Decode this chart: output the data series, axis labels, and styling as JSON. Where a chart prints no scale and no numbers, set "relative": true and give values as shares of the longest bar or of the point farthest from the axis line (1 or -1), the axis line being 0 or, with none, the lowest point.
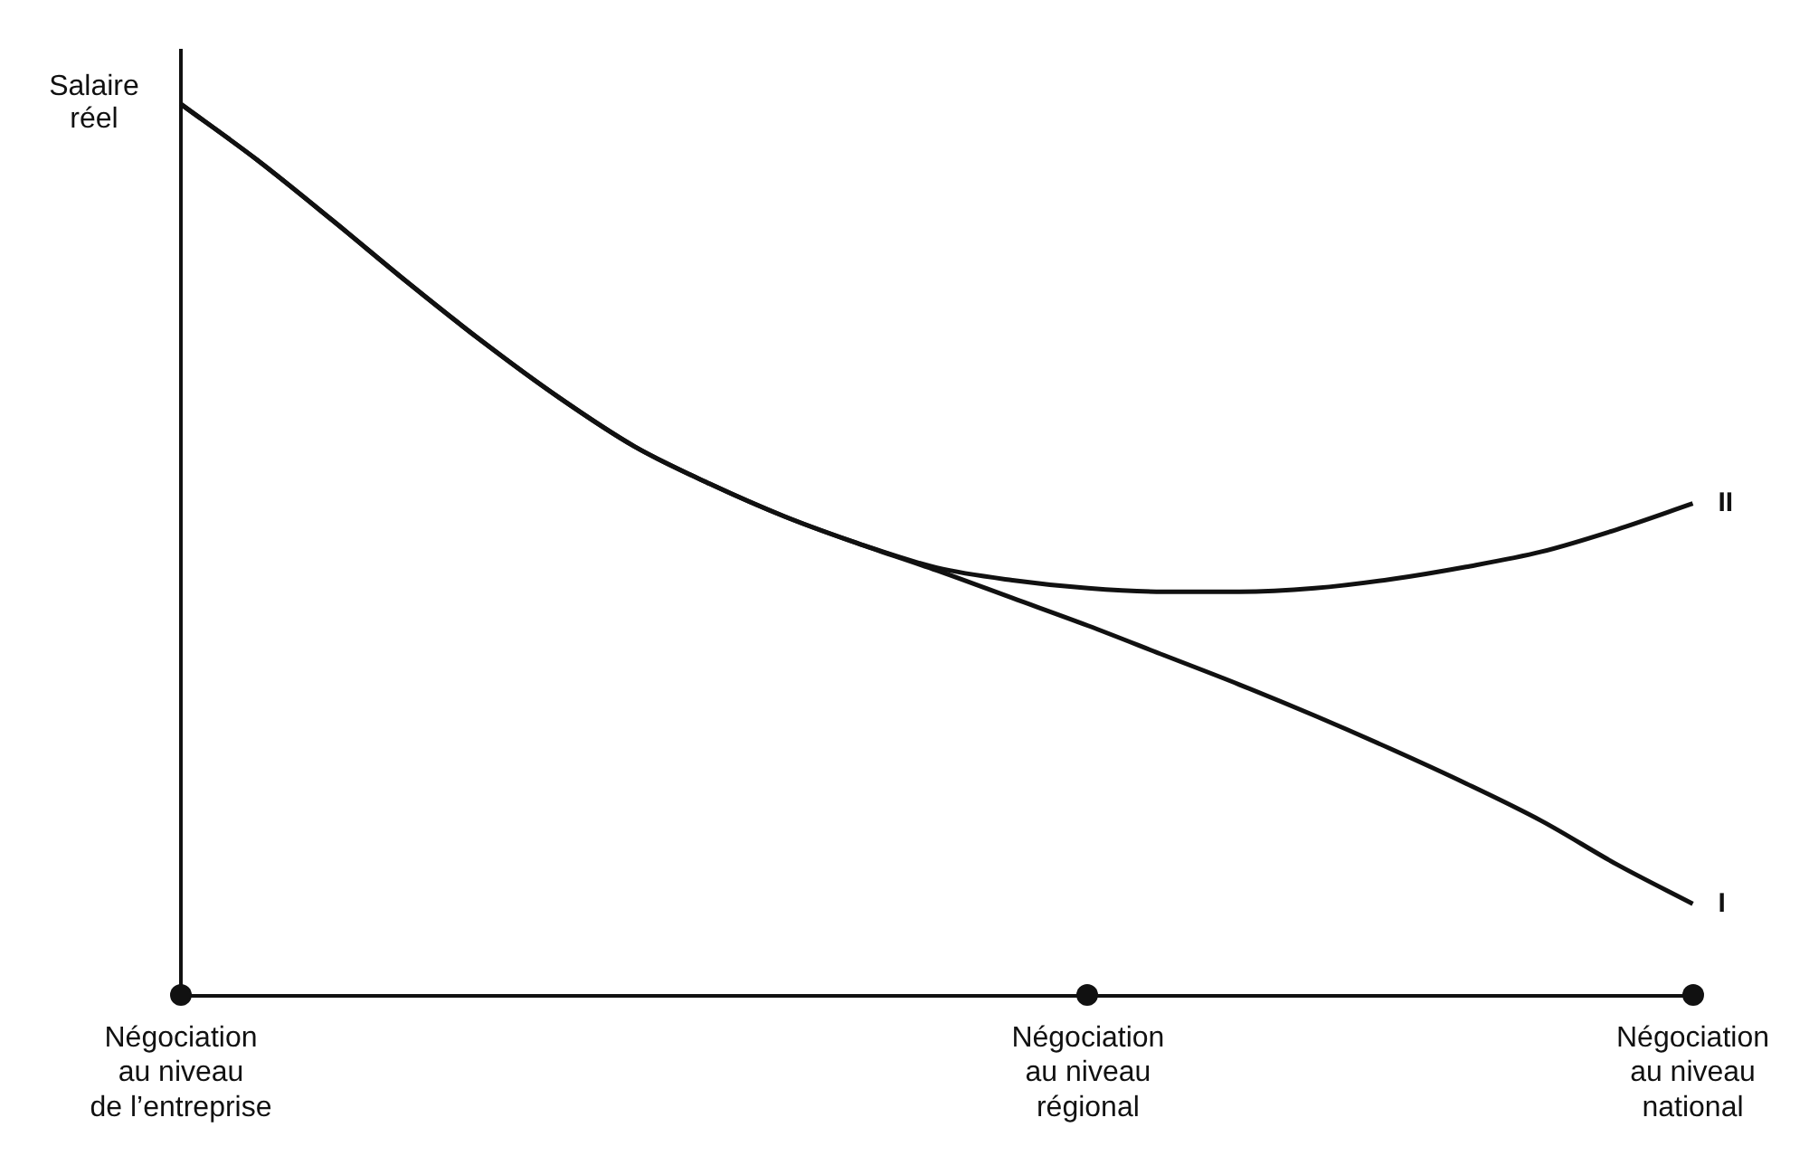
{
  "chart_data": {
    "type": "line",
    "relative": true,
    "ylabel": "Salaire réel",
    "legend": false,
    "grid": false,
    "marker": "none",
    "line_style": "solid",
    "categories": [
      "Négociation\nau niveau\nde l’entreprise",
      null,
      null,
      null,
      null,
      null,
      null,
      null,
      null,
      null,
      null,
      null,
      "Négociation\nau niveau\nrégional",
      null,
      null,
      null,
      null,
      null,
      null,
      null,
      "Négociation\nau niveau\nnational"
    ],
    "series": [
      {
        "name": "I",
        "color": "#111111",
        "values": [
          1.0,
          0.938,
          0.87,
          0.8,
          0.733,
          0.671,
          0.616,
          0.574,
          0.537,
          0.506,
          0.477,
          0.446,
          0.415,
          0.382,
          0.349,
          0.314,
          0.277,
          0.238,
          0.196,
          0.147,
          0.103
        ]
      },
      {
        "name": "II",
        "color": "#111111",
        "values": [
          1.0,
          0.938,
          0.87,
          0.8,
          0.733,
          0.671,
          0.616,
          0.574,
          0.537,
          0.506,
          0.48,
          0.466,
          0.457,
          0.453,
          0.453,
          0.457,
          0.467,
          0.481,
          0.498,
          0.523,
          0.552
        ]
      }
    ]
  }
}
